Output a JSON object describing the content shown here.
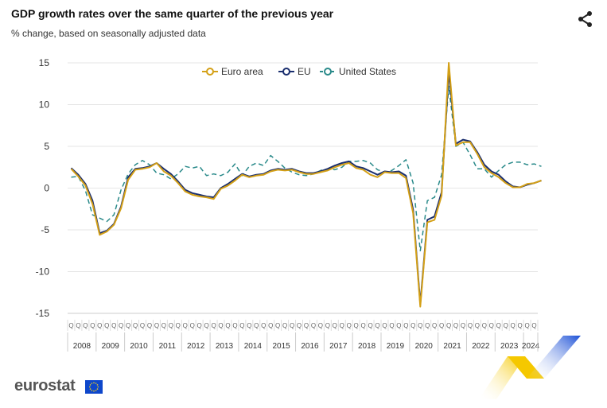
{
  "header": {
    "title": "GDP growth rates over the same quarter of the previous year",
    "subtitle": "% change, based on seasonally adjusted data"
  },
  "brand": {
    "logo_text": "eurostat"
  },
  "colors": {
    "euro_area": "#d4a017",
    "eu": "#1a2e6e",
    "us": "#2a8a8a",
    "grid": "#e6e6e6",
    "flag_blue": "#0e47cb",
    "flag_star": "#ffd617",
    "deco_yellow": "#f5c800",
    "deco_blue": "#1a4fd6"
  },
  "icons": {
    "share": "share-icon"
  },
  "chart_data": {
    "type": "line",
    "ylim": [
      -15,
      15
    ],
    "yticks": [
      15,
      10,
      5,
      0,
      -5,
      -10,
      -15
    ],
    "legend_placement": "top-center",
    "grid": true,
    "quarter_label": "Q",
    "years": [
      "2008",
      "2009",
      "2010",
      "2011",
      "2012",
      "2013",
      "2014",
      "2015",
      "2016",
      "2017",
      "2018",
      "2019",
      "2020",
      "2021",
      "2022",
      "2023",
      "2024"
    ],
    "quarters_per_year": [
      4,
      4,
      4,
      4,
      4,
      4,
      4,
      4,
      4,
      4,
      4,
      4,
      4,
      4,
      4,
      4,
      2
    ],
    "series": [
      {
        "name": "Euro area",
        "key": "euro_area",
        "style": "solid",
        "values": [
          2.3,
          1.4,
          0.3,
          -1.9,
          -5.6,
          -5.2,
          -4.4,
          -2.4,
          1.0,
          2.2,
          2.3,
          2.5,
          3.0,
          2.0,
          1.5,
          0.6,
          -0.4,
          -0.8,
          -1.0,
          -1.1,
          -1.3,
          -0.1,
          0.3,
          0.9,
          1.6,
          1.3,
          1.5,
          1.6,
          2.0,
          2.2,
          2.1,
          2.2,
          1.9,
          1.7,
          1.7,
          1.9,
          2.1,
          2.5,
          2.8,
          3.0,
          2.4,
          2.2,
          1.6,
          1.3,
          1.9,
          1.8,
          1.8,
          1.2,
          -3.0,
          -14.2,
          -4.1,
          -3.8,
          -0.9,
          15.0,
          5.1,
          5.5,
          5.5,
          4.1,
          2.5,
          1.8,
          1.3,
          0.6,
          0.1,
          0.1,
          0.5,
          0.6,
          0.9
        ]
      },
      {
        "name": "EU",
        "key": "eu",
        "style": "solid",
        "values": [
          2.4,
          1.6,
          0.5,
          -1.5,
          -5.4,
          -5.1,
          -4.3,
          -2.2,
          1.3,
          2.3,
          2.4,
          2.6,
          3.0,
          2.3,
          1.7,
          0.8,
          -0.2,
          -0.6,
          -0.8,
          -1.0,
          -1.1,
          0.0,
          0.5,
          1.1,
          1.7,
          1.4,
          1.6,
          1.7,
          2.1,
          2.3,
          2.2,
          2.3,
          2.0,
          1.8,
          1.8,
          2.0,
          2.3,
          2.7,
          3.0,
          3.2,
          2.6,
          2.4,
          2.0,
          1.6,
          2.0,
          1.9,
          2.0,
          1.5,
          -2.6,
          -13.9,
          -3.8,
          -3.4,
          -0.5,
          14.0,
          5.3,
          5.8,
          5.6,
          4.3,
          2.8,
          2.0,
          1.6,
          0.8,
          0.2,
          0.1,
          0.4,
          0.6,
          0.9
        ]
      },
      {
        "name": "United States",
        "key": "us",
        "style": "dashed",
        "values": [
          1.3,
          1.4,
          -0.3,
          -3.2,
          -3.6,
          -4.0,
          -3.2,
          -0.2,
          1.7,
          2.8,
          3.3,
          2.8,
          1.8,
          1.6,
          1.1,
          1.7,
          2.6,
          2.4,
          2.6,
          1.5,
          1.7,
          1.5,
          1.9,
          2.9,
          1.5,
          2.6,
          3.0,
          2.7,
          3.9,
          3.2,
          2.4,
          1.9,
          1.6,
          1.5,
          1.7,
          2.1,
          2.3,
          2.2,
          2.5,
          3.2,
          3.2,
          3.3,
          3.0,
          2.2,
          1.9,
          2.1,
          2.7,
          3.4,
          0.6,
          -7.5,
          -1.5,
          -1.1,
          1.6,
          12.2,
          5.0,
          5.5,
          4.0,
          2.3,
          2.3,
          1.3,
          2.1,
          2.8,
          3.1,
          3.1,
          2.8,
          2.9,
          2.6
        ]
      }
    ]
  }
}
